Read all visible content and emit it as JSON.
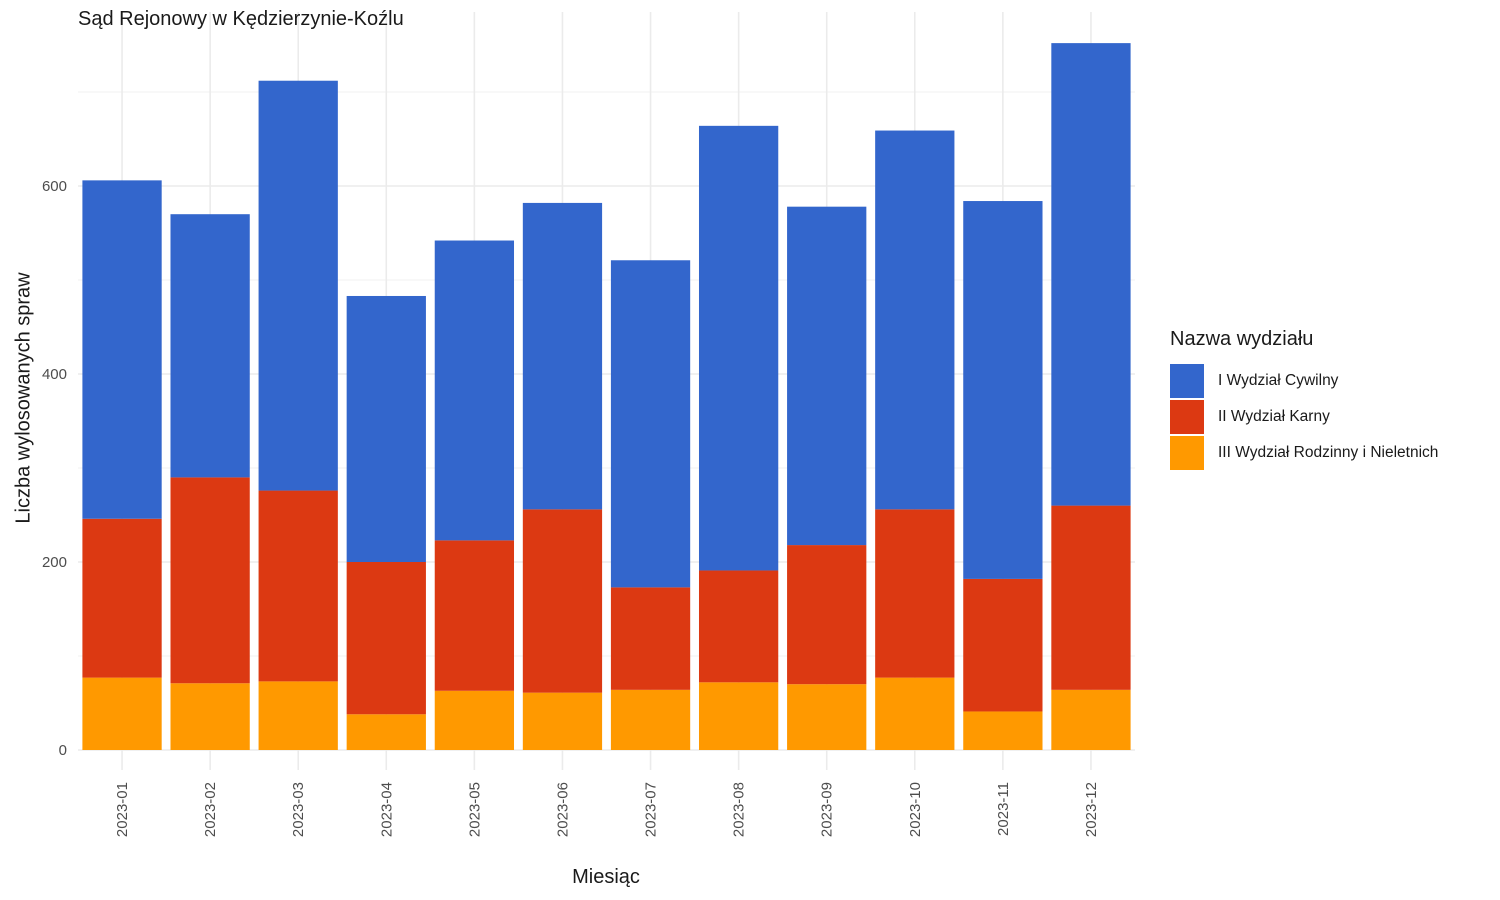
{
  "chart_data": {
    "type": "bar",
    "stacked": true,
    "title": "Sąd Rejonowy w Kędzierzynie-Koźlu",
    "xlabel": "Miesiąc",
    "ylabel": "Liczba wylosowanych spraw",
    "categories": [
      "2023-01",
      "2023-02",
      "2023-03",
      "2023-04",
      "2023-05",
      "2023-06",
      "2023-07",
      "2023-08",
      "2023-09",
      "2023-10",
      "2023-11",
      "2023-12"
    ],
    "ylim": [
      0,
      780
    ],
    "yticks": [
      0,
      200,
      400,
      600
    ],
    "grid": true,
    "legend_position": "right",
    "legend_title": "Nazwa wydziału",
    "series": [
      {
        "name": "III Wydział Rodzinny i Nieletnich",
        "color": "#FF9900",
        "values": [
          77,
          71,
          73,
          38,
          63,
          61,
          64,
          72,
          70,
          77,
          41,
          64
        ]
      },
      {
        "name": "II Wydział Karny",
        "color": "#DC3912",
        "values": [
          169,
          219,
          203,
          162,
          160,
          195,
          109,
          119,
          148,
          179,
          141,
          196
        ]
      },
      {
        "name": "I Wydział Cywilny",
        "color": "#3366CC",
        "values": [
          360,
          280,
          436,
          283,
          319,
          326,
          348,
          473,
          360,
          403,
          402,
          492
        ]
      }
    ]
  }
}
